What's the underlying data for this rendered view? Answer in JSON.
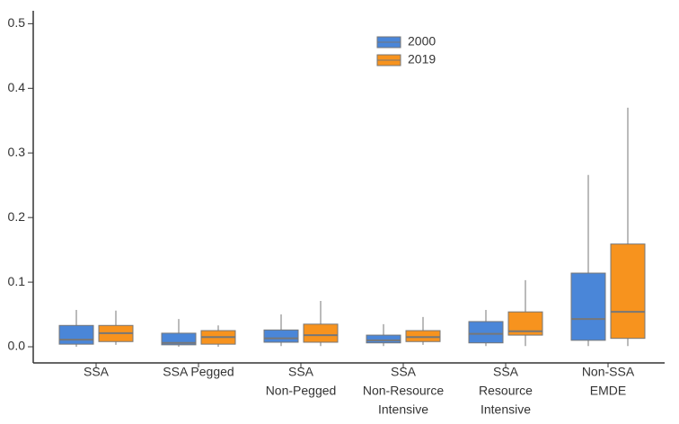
{
  "chart_data": {
    "type": "box",
    "categories": [
      [
        "SSA"
      ],
      [
        "SSA Pegged"
      ],
      [
        "SSA",
        "Non-Pegged"
      ],
      [
        "SSA",
        "Non-Resource",
        "Intensive"
      ],
      [
        "SSA",
        "Resource",
        "Intensive"
      ],
      [
        "Non-SSA",
        "EMDE"
      ]
    ],
    "series": [
      {
        "name": "2000",
        "color": "#4a86d8",
        "values": [
          {
            "low": 0,
            "q1": 0.004,
            "median": 0.011,
            "q3": 0.033,
            "high": 0.057
          },
          {
            "low": 0,
            "q1": 0.003,
            "median": 0.006,
            "q3": 0.021,
            "high": 0.043
          },
          {
            "low": 0.001,
            "q1": 0.007,
            "median": 0.013,
            "q3": 0.026,
            "high": 0.05
          },
          {
            "low": 0.001,
            "q1": 0.006,
            "median": 0.01,
            "q3": 0.018,
            "high": 0.035
          },
          {
            "low": 0.001,
            "q1": 0.006,
            "median": 0.02,
            "q3": 0.039,
            "high": 0.057
          },
          {
            "low": 0.001,
            "q1": 0.01,
            "median": 0.043,
            "q3": 0.114,
            "high": 0.266
          }
        ]
      },
      {
        "name": "2019",
        "color": "#f7931e",
        "values": [
          {
            "low": 0.003,
            "q1": 0.008,
            "median": 0.021,
            "q3": 0.033,
            "high": 0.056
          },
          {
            "low": 0,
            "q1": 0.004,
            "median": 0.015,
            "q3": 0.025,
            "high": 0.033
          },
          {
            "low": 0.001,
            "q1": 0.007,
            "median": 0.018,
            "q3": 0.035,
            "high": 0.071
          },
          {
            "low": 0.003,
            "q1": 0.008,
            "median": 0.015,
            "q3": 0.025,
            "high": 0.046
          },
          {
            "low": 0.001,
            "q1": 0.018,
            "median": 0.024,
            "q3": 0.054,
            "high": 0.103
          },
          {
            "low": 0.001,
            "q1": 0.013,
            "median": 0.054,
            "q3": 0.159,
            "high": 0.37
          }
        ]
      }
    ],
    "ylim": [
      -0.025,
      0.52
    ],
    "yticks": [
      {
        "value": 0,
        "label": "0.0"
      },
      0.1,
      0.2,
      0.3,
      0.4,
      0.5
    ],
    "legend": "top-center"
  }
}
